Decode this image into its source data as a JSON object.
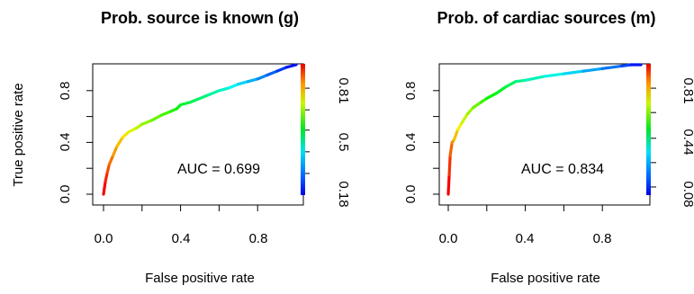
{
  "chart_data": [
    {
      "type": "line",
      "title": "Prob. source is known (g)",
      "xlabel": "False positive rate",
      "ylabel": "True positive rate",
      "xlim": [
        0,
        1
      ],
      "ylim": [
        0,
        1
      ],
      "x_ticks": [
        "0.0",
        "0.4",
        "0.8"
      ],
      "y_ticks": [
        "0.0",
        "0.4",
        "0.8"
      ],
      "annotation": "AUC = 0.699",
      "colorbar_labels": [
        "0.18",
        "0.5",
        "0.81"
      ],
      "colorbar_range": [
        0.02,
        0.99
      ],
      "colorbar_ticks": [
        0.18,
        0.34,
        0.5,
        0.65,
        0.81
      ],
      "series": [
        {
          "x": [
            0.0,
            0.01,
            0.02,
            0.03,
            0.05,
            0.07,
            0.1,
            0.13,
            0.17,
            0.2,
            0.25,
            0.3,
            0.35,
            0.38,
            0.4,
            0.45,
            0.5,
            0.55,
            0.6,
            0.65,
            0.7,
            0.75,
            0.8,
            0.85,
            0.9,
            0.95,
            1.0
          ],
          "y": [
            0.0,
            0.1,
            0.17,
            0.23,
            0.3,
            0.37,
            0.44,
            0.48,
            0.51,
            0.54,
            0.57,
            0.61,
            0.64,
            0.66,
            0.69,
            0.71,
            0.74,
            0.77,
            0.8,
            0.82,
            0.85,
            0.87,
            0.89,
            0.92,
            0.95,
            0.98,
            1.0
          ]
        }
      ]
    },
    {
      "type": "line",
      "title": "Prob. of cardiac sources (m)",
      "xlabel": "False positive rate",
      "ylabel": "",
      "xlim": [
        0,
        1
      ],
      "ylim": [
        0,
        1
      ],
      "x_ticks": [
        "0.0",
        "0.4",
        "0.8"
      ],
      "y_ticks": [
        "0.0",
        "0.4",
        "0.8"
      ],
      "annotation": "AUC = 0.834",
      "colorbar_labels": [
        "0.08",
        "0.44",
        "0.81"
      ],
      "colorbar_range": [
        0.02,
        0.99
      ],
      "colorbar_ticks": [
        0.08,
        0.26,
        0.44,
        0.63,
        0.81
      ],
      "series": [
        {
          "x": [
            0.0,
            0.005,
            0.01,
            0.02,
            0.03,
            0.05,
            0.07,
            0.1,
            0.13,
            0.17,
            0.2,
            0.25,
            0.3,
            0.35,
            0.4,
            0.5,
            0.6,
            0.7,
            0.8,
            0.9,
            0.95,
            1.0
          ],
          "y": [
            0.0,
            0.15,
            0.3,
            0.4,
            0.42,
            0.5,
            0.55,
            0.62,
            0.67,
            0.71,
            0.74,
            0.78,
            0.83,
            0.87,
            0.88,
            0.91,
            0.93,
            0.95,
            0.97,
            0.99,
            1.0,
            1.0
          ]
        }
      ]
    }
  ]
}
